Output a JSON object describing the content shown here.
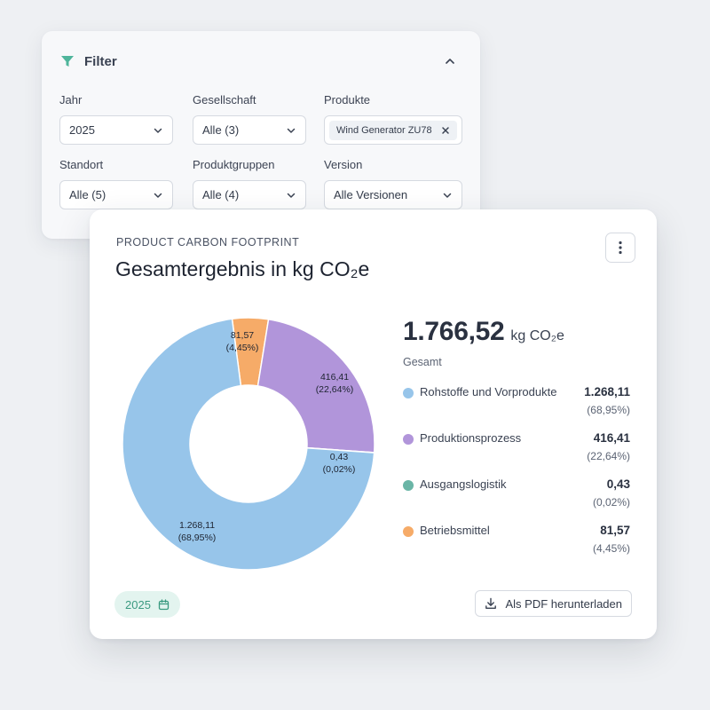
{
  "filter": {
    "title": "Filter",
    "fields": [
      {
        "label": "Jahr",
        "value": "2025"
      },
      {
        "label": "Gesellschaft",
        "value": "Alle (3)"
      },
      {
        "label": "Produkte",
        "chip": "Wind Generator ZU78"
      },
      {
        "label": "Standort",
        "value": "Alle (5)"
      },
      {
        "label": "Produktgruppen",
        "value": "Alle (4)"
      },
      {
        "label": "Version",
        "value": "Alle Versionen"
      }
    ]
  },
  "card": {
    "kicker": "PRODUCT CARBON FOOTPRINT",
    "title": "Gesamtergebnis in kg CO₂e",
    "total_value": "1.766,52",
    "total_unit": "kg CO₂e",
    "total_label": "Gesamt",
    "year_badge": "2025",
    "pdf_button": "Als PDF herunterladen"
  },
  "chart_data": {
    "type": "pie",
    "variant": "donut",
    "categories": [
      "Rohstoffe und Vorprodukte",
      "Produktionsprozess",
      "Ausgangslogistik",
      "Betriebsmittel"
    ],
    "values": [
      1268.11,
      416.41,
      0.43,
      81.57
    ],
    "value_labels": [
      "1.268,11",
      "416,41",
      "0,43",
      "81,57"
    ],
    "percent_labels": [
      "(68,95%)",
      "(22,64%)",
      "(0,02%)",
      "(4,45%)"
    ],
    "colors": [
      "#97c5ea",
      "#b195da",
      "#6ab5a6",
      "#f6ab68"
    ],
    "legend": "right"
  },
  "colors": {
    "accent_green": "#3a9a80",
    "filter_icon": "#4fb59b"
  }
}
